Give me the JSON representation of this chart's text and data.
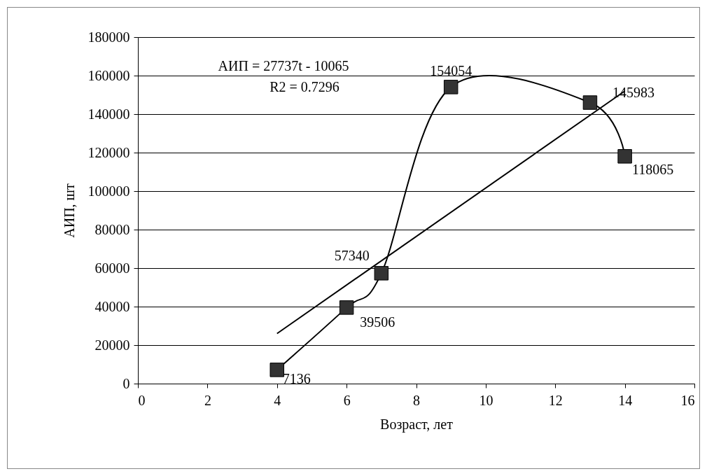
{
  "chart_data": {
    "type": "line",
    "xlabel": "Возраст, лет",
    "ylabel": "АИП, шт",
    "annotations": [
      "АИП = 27737t - 10065",
      "R2 = 0.7296"
    ],
    "series": [
      {
        "type": "line",
        "color": "#000000",
        "marker": "square",
        "x": [
          4,
          6,
          7,
          9,
          13,
          14
        ],
        "values": [
          7136,
          39506,
          57340,
          154054,
          145983,
          118065
        ],
        "value_labels": [
          "7136",
          "39506",
          "57340",
          "154054",
          "145983",
          "118065"
        ]
      },
      {
        "type": "line",
        "color": "#000000",
        "marker": "none",
        "x": [
          4,
          14
        ],
        "values": [
          26000,
          152000
        ]
      }
    ],
    "xlim": [
      0,
      16
    ],
    "xticks": [
      0,
      2,
      4,
      6,
      8,
      10,
      12,
      14,
      16
    ],
    "ylim": [
      0,
      180000
    ],
    "yticks": [
      0,
      20000,
      40000,
      60000,
      80000,
      100000,
      120000,
      140000,
      160000,
      180000
    ],
    "grid": "y",
    "line_style": "solid"
  }
}
